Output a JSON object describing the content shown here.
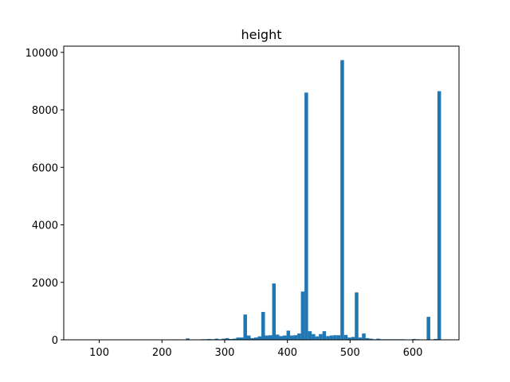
{
  "chart_data": {
    "type": "histogram",
    "title": "height",
    "color": "#1f77b4",
    "bins": [
      72.0,
      77.73,
      83.46,
      89.19,
      94.92,
      100.65,
      106.38,
      112.11,
      117.84,
      123.57,
      129.3,
      135.03,
      140.76,
      146.49,
      152.22,
      157.95,
      163.68,
      169.41,
      175.14,
      180.87,
      186.6,
      192.33,
      198.06,
      203.79,
      209.52,
      215.25,
      220.98,
      226.71,
      232.44,
      238.17,
      243.9,
      249.63,
      255.36,
      261.09,
      266.82,
      272.55,
      278.28,
      284.01,
      289.74,
      295.47,
      301.2,
      306.93,
      312.66,
      318.39,
      324.12,
      329.85,
      335.58,
      341.31,
      347.04,
      352.77,
      358.5,
      364.23,
      369.96,
      375.69,
      381.42,
      387.15,
      392.88,
      398.61,
      404.34,
      410.07,
      415.8,
      421.53,
      427.26,
      432.99,
      438.72,
      444.45,
      450.18,
      455.91,
      461.64,
      467.37,
      473.1,
      478.83,
      484.56,
      490.29,
      496.02,
      501.75,
      507.48,
      513.21,
      518.94,
      524.67,
      530.4,
      536.13,
      541.86,
      547.59,
      553.32,
      559.05,
      564.78,
      570.51,
      576.24,
      581.97,
      587.7,
      593.43,
      599.16,
      604.89,
      610.62,
      616.35,
      622.08,
      627.81,
      633.54,
      639.27,
      645.0
    ],
    "values": [
      0,
      0,
      0,
      0,
      0,
      0,
      0,
      0,
      0,
      0,
      0,
      0,
      0,
      0,
      0,
      0,
      0,
      0,
      0,
      0,
      0,
      0,
      0,
      0,
      0,
      0,
      15,
      0,
      0,
      50,
      0,
      0,
      0,
      20,
      20,
      30,
      20,
      40,
      20,
      40,
      60,
      30,
      40,
      80,
      80,
      880,
      150,
      60,
      80,
      120,
      970,
      150,
      160,
      1960,
      180,
      130,
      150,
      320,
      150,
      160,
      220,
      1680,
      8600,
      300,
      200,
      120,
      200,
      300,
      130,
      150,
      160,
      160,
      9730,
      170,
      80,
      100,
      1650,
      80,
      220,
      60,
      40,
      20,
      40,
      20,
      20,
      20,
      20,
      20,
      20,
      20,
      10,
      0,
      30,
      20,
      10,
      0,
      800,
      0,
      30,
      8650
    ],
    "xlim": [
      43.35,
      673.65
    ],
    "ylim": [
      0,
      10216
    ],
    "xticks": [
      100,
      200,
      300,
      400,
      500,
      600
    ],
    "yticks": [
      0,
      2000,
      4000,
      6000,
      8000,
      10000
    ]
  }
}
